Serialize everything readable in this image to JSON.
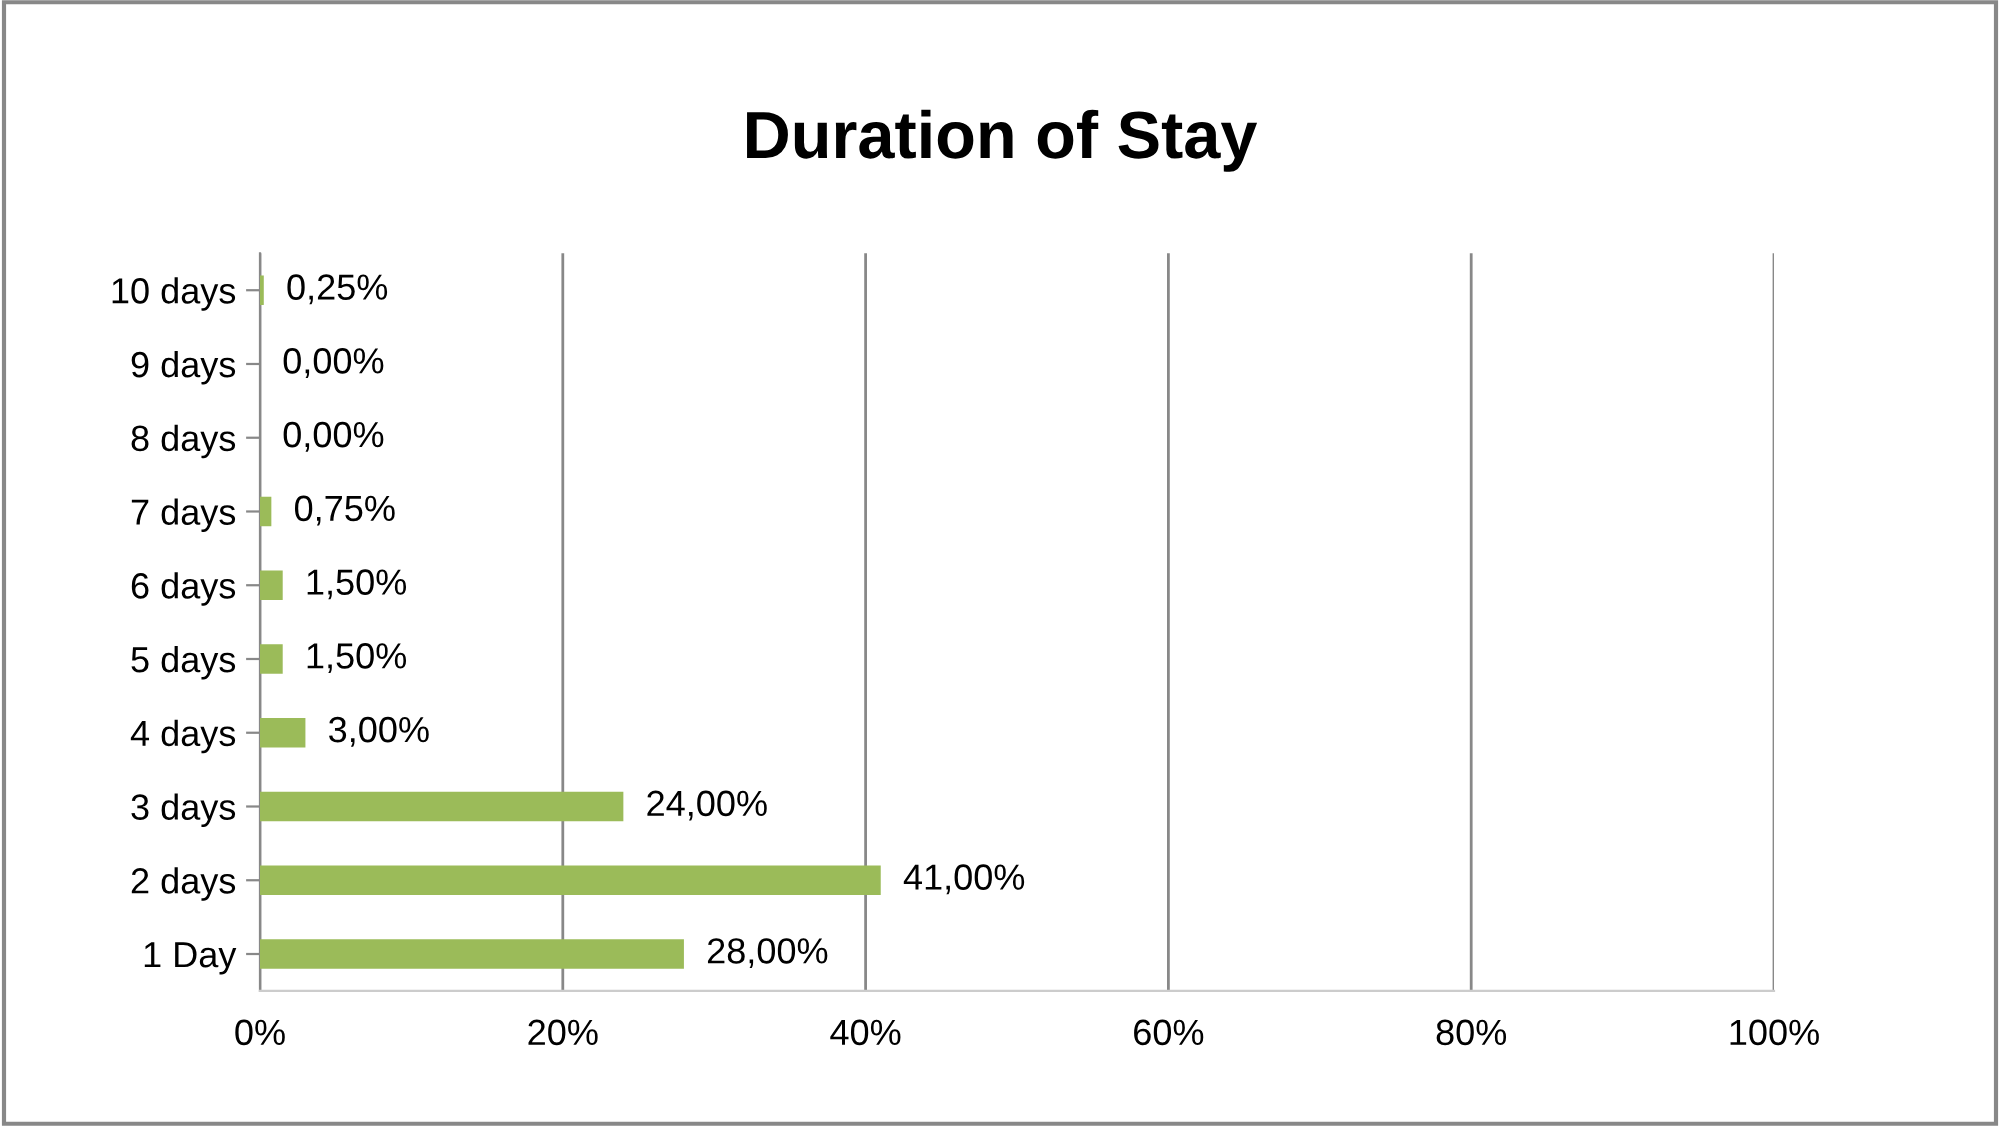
{
  "chart_data": {
    "type": "bar",
    "orientation": "horizontal",
    "title": "Duration of Stay",
    "categories": [
      "10 days",
      "9 days",
      "8 days",
      "7 days",
      "6 days",
      "5 days",
      "4 days",
      "3 days",
      "2 days",
      "1 Day"
    ],
    "values": [
      0.25,
      0,
      0,
      0.75,
      1.5,
      1.5,
      3,
      24,
      41,
      28
    ],
    "value_labels": [
      "0,25%",
      "0,00%",
      "0,00%",
      "0,75%",
      "1,50%",
      "1,50%",
      "3,00%",
      "24,00%",
      "41,00%",
      "28,00%"
    ],
    "color": "#9bbb59",
    "xlim": [
      0,
      100
    ],
    "xticks": [
      {
        "value": 0,
        "label": "0%"
      },
      {
        "value": 20,
        "label": "20%"
      },
      {
        "value": 40,
        "label": "40%"
      },
      {
        "value": 60,
        "label": "60%"
      },
      {
        "value": 80,
        "label": "80%"
      },
      {
        "value": 100,
        "label": "100%"
      }
    ],
    "grid": "x",
    "legend": false
  }
}
